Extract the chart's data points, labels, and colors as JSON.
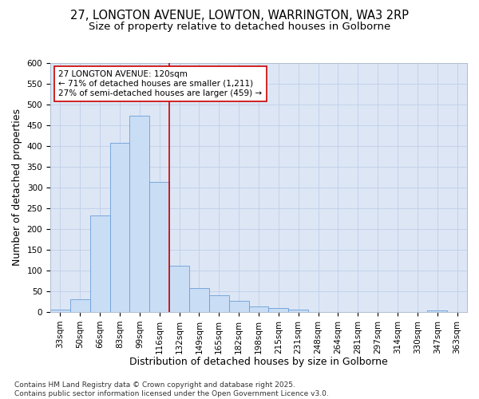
{
  "title_line1": "27, LONGTON AVENUE, LOWTON, WARRINGTON, WA3 2RP",
  "title_line2": "Size of property relative to detached houses in Golborne",
  "xlabel": "Distribution of detached houses by size in Golborne",
  "ylabel": "Number of detached properties",
  "categories": [
    "33sqm",
    "50sqm",
    "66sqm",
    "83sqm",
    "99sqm",
    "116sqm",
    "132sqm",
    "149sqm",
    "165sqm",
    "182sqm",
    "198sqm",
    "215sqm",
    "231sqm",
    "248sqm",
    "264sqm",
    "281sqm",
    "297sqm",
    "314sqm",
    "330sqm",
    "347sqm",
    "363sqm"
  ],
  "values": [
    5,
    30,
    233,
    407,
    473,
    313,
    111,
    57,
    40,
    26,
    13,
    10,
    5,
    0,
    0,
    0,
    0,
    0,
    0,
    3,
    0
  ],
  "bar_color": "#c9ddf5",
  "bar_edge_color": "#6a9fd8",
  "vline_color": "#cc0000",
  "vline_pos": 5.5,
  "annotation_text": "27 LONGTON AVENUE: 120sqm\n← 71% of detached houses are smaller (1,211)\n27% of semi-detached houses are larger (459) →",
  "annotation_box_facecolor": "white",
  "annotation_box_edgecolor": "#cc0000",
  "ylim": [
    0,
    600
  ],
  "yticks": [
    0,
    50,
    100,
    150,
    200,
    250,
    300,
    350,
    400,
    450,
    500,
    550,
    600
  ],
  "grid_color": "#c0cfe8",
  "bg_color": "#dce6f5",
  "footer": "Contains HM Land Registry data © Crown copyright and database right 2025.\nContains public sector information licensed under the Open Government Licence v3.0.",
  "title1_fontsize": 10.5,
  "title2_fontsize": 9.5,
  "axis_label_fontsize": 9,
  "tick_fontsize": 7.5,
  "annotation_fontsize": 7.5,
  "footer_fontsize": 6.5
}
